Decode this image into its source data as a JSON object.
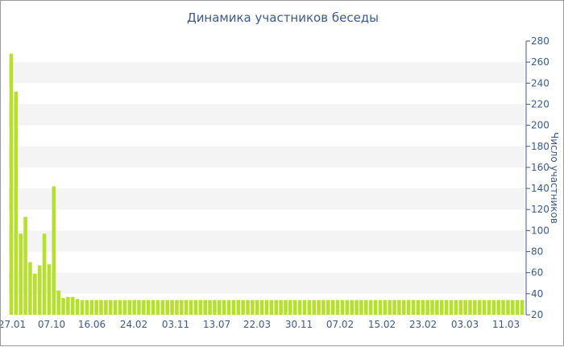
{
  "chart_data": {
    "type": "bar",
    "title": "Динамика участников беседы",
    "ylabel": "Число участников",
    "xlabel": "",
    "ylim": [
      20,
      280
    ],
    "yticks": [
      20,
      40,
      60,
      80,
      100,
      120,
      140,
      160,
      180,
      200,
      220,
      240,
      260,
      280
    ],
    "grid": "alternating horizontal bands",
    "y_axis_side": "right",
    "xtick_labels": [
      "27.01",
      "07.10",
      "16.06",
      "24.02",
      "03.11",
      "13.07",
      "22.03",
      "30.11",
      "07.02",
      "15.02",
      "23.02",
      "03.03",
      "11.03"
    ],
    "bar_color": "#b5e02b",
    "values": [
      268,
      232,
      97,
      113,
      70,
      59,
      67,
      97,
      68,
      142,
      43,
      36,
      37,
      37,
      35,
      34,
      34,
      34,
      34,
      34,
      34,
      34,
      34,
      34,
      34,
      34,
      34,
      34,
      34,
      34,
      34,
      34,
      34,
      34,
      34,
      34,
      34,
      34,
      34,
      34,
      34,
      34,
      34,
      34,
      34,
      34,
      34,
      34,
      34,
      34,
      34,
      34,
      34,
      34,
      34,
      34,
      34,
      34,
      34,
      34,
      34,
      34,
      34,
      34,
      34,
      34,
      34,
      34,
      34,
      34,
      34,
      34,
      34,
      34,
      34,
      34,
      34,
      34,
      34,
      34,
      34,
      34,
      34,
      34,
      34,
      34,
      34,
      34,
      34,
      34,
      34,
      34,
      34,
      34,
      34,
      34,
      34,
      34,
      34,
      34,
      34,
      34,
      34,
      34,
      34,
      34,
      34,
      34,
      34
    ]
  }
}
